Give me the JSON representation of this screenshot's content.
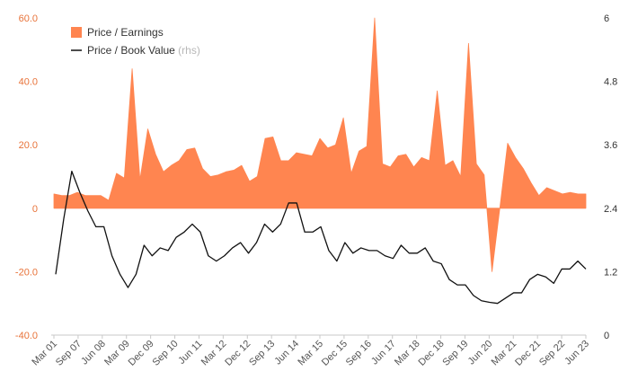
{
  "chart_data": {
    "type": "area+line",
    "colors": {
      "pe_fill": "#ff8550",
      "pe_stroke": "#e8733a",
      "pb_line": "#111111",
      "left_axis_text": "#e8733a",
      "right_axis_text": "#333333"
    },
    "legend": [
      {
        "label": "Price / Earnings",
        "suffix": "",
        "marker": "square"
      },
      {
        "label": "Price / Book Value",
        "suffix": "(rhs)",
        "marker": "line"
      }
    ],
    "legend_position": "top-left",
    "grid": false,
    "left_axis": {
      "ylim": [
        -40,
        60
      ],
      "ticks": [
        "60.0",
        "40.0",
        "20.0",
        "0",
        "-20.0",
        "-40.0"
      ]
    },
    "right_axis": {
      "ylim": [
        0,
        6
      ],
      "ticks": [
        "6",
        "4.8",
        "3.6",
        "2.4",
        "1.2",
        "0"
      ]
    },
    "x_ticks": [
      "Mar 01",
      "Sep 07",
      "Jun 08",
      "Mar 09",
      "Dec 09",
      "Sep 10",
      "Jun 11",
      "Mar 12",
      "Dec 12",
      "Sep 13",
      "Jun 14",
      "Mar 15",
      "Dec 15",
      "Sep 16",
      "Jun 17",
      "Mar 18",
      "Dec 18",
      "Sep 19",
      "Jun 20",
      "Mar 21",
      "Dec 21",
      "Sep 22",
      "Jun 23"
    ],
    "series": [
      {
        "name": "Price / Earnings",
        "axis": "left",
        "style": "area",
        "values": [
          4.5,
          4,
          4,
          5,
          4,
          4,
          4,
          2.5,
          11,
          9.5,
          44,
          9,
          25,
          17,
          11.5,
          13.5,
          15,
          18.5,
          19,
          12.5,
          10,
          10.5,
          11.5,
          12,
          13.5,
          8.5,
          10,
          22,
          22.5,
          15,
          15,
          17.5,
          17,
          16.5,
          22,
          19,
          20,
          28.5,
          11,
          18,
          19.5,
          60,
          14,
          13,
          16.5,
          17,
          13,
          16,
          15,
          37,
          13.5,
          15,
          10,
          52,
          14,
          10.5,
          -20,
          0,
          20.5,
          16,
          12.5,
          8,
          4,
          6.5,
          5.5,
          4.5,
          5,
          4.5,
          4.5
        ]
      },
      {
        "name": "Price / Book Value",
        "axis": "right",
        "style": "line",
        "values": [
          1.15,
          2.2,
          3.1,
          2.7,
          2.35,
          2.05,
          2.05,
          1.5,
          1.15,
          0.9,
          1.15,
          1.7,
          1.5,
          1.65,
          1.6,
          1.85,
          1.95,
          2.1,
          1.95,
          1.5,
          1.4,
          1.5,
          1.65,
          1.75,
          1.55,
          1.75,
          2.1,
          1.95,
          2.1,
          2.5,
          2.5,
          1.95,
          1.95,
          2.05,
          1.6,
          1.4,
          1.75,
          1.55,
          1.65,
          1.6,
          1.6,
          1.5,
          1.45,
          1.7,
          1.55,
          1.55,
          1.65,
          1.4,
          1.35,
          1.05,
          0.95,
          0.95,
          0.75,
          0.65,
          0.62,
          0.6,
          0.7,
          0.8,
          0.8,
          1.05,
          1.15,
          1.1,
          0.98,
          1.25,
          1.25,
          1.4,
          1.25
        ]
      }
    ]
  }
}
